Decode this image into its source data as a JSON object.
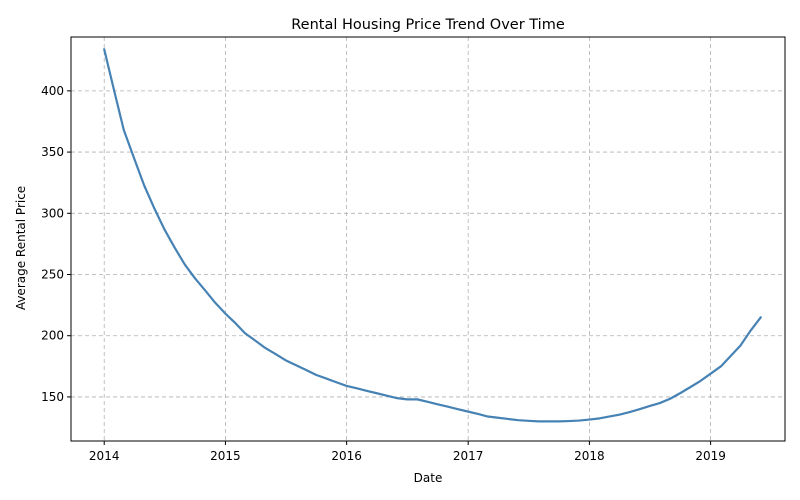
{
  "chart_data": {
    "type": "line",
    "title": "Rental Housing Price Trend Over Time",
    "xlabel": "Date",
    "ylabel": "Average Rental Price",
    "xlim": [
      "2013-09-23",
      "2019-08-13"
    ],
    "ylim": [
      114,
      444
    ],
    "grid": true,
    "x_ticks": [
      "2014",
      "2015",
      "2016",
      "2017",
      "2018",
      "2019"
    ],
    "y_ticks": [
      150,
      200,
      250,
      300,
      350,
      400
    ],
    "colors": {
      "line": "#4682b4",
      "grid": "#b0b0b0"
    },
    "series": [
      {
        "x": [
          "2014-01-01",
          "2014-02-01",
          "2014-03-01",
          "2014-04-01",
          "2014-05-01",
          "2014-06-01",
          "2014-07-01",
          "2014-08-01",
          "2014-09-01",
          "2014-10-01",
          "2014-11-01",
          "2014-12-01",
          "2015-01-01",
          "2015-02-01",
          "2015-03-01",
          "2015-04-01",
          "2015-05-01",
          "2015-06-01",
          "2015-07-01",
          "2015-08-01",
          "2015-09-01",
          "2015-10-01",
          "2015-11-01",
          "2015-12-01",
          "2016-01-01",
          "2016-02-01",
          "2016-03-01",
          "2016-04-01",
          "2016-05-01",
          "2016-06-01",
          "2016-07-01",
          "2016-08-01",
          "2016-09-01",
          "2016-10-01",
          "2016-11-01",
          "2016-12-01",
          "2017-01-01",
          "2017-02-01",
          "2017-03-01",
          "2017-04-01",
          "2017-05-01",
          "2017-06-01",
          "2017-07-01",
          "2017-08-01",
          "2017-09-01",
          "2017-10-01",
          "2017-11-01",
          "2017-12-01",
          "2018-01-01",
          "2018-02-01",
          "2018-03-01",
          "2018-04-01",
          "2018-05-01",
          "2018-06-01",
          "2018-07-01",
          "2018-08-01",
          "2018-09-01",
          "2018-10-01",
          "2018-11-01",
          "2018-12-01",
          "2019-01-01",
          "2019-02-01",
          "2019-03-01",
          "2019-04-01",
          "2019-05-01",
          "2019-06-01"
        ],
        "values": [
          434,
          399,
          368,
          345,
          323,
          304,
          287,
          272,
          258,
          247,
          237,
          227,
          218,
          210,
          202,
          196,
          190,
          185,
          180,
          176,
          172,
          168,
          165,
          162,
          159,
          157,
          155,
          153,
          151,
          149,
          148,
          148,
          146,
          144,
          142,
          140,
          138,
          136,
          134,
          133,
          132,
          131,
          130.5,
          130,
          130,
          130,
          130.3,
          130.7,
          131.5,
          132.5,
          134,
          135.5,
          137.5,
          140,
          142.5,
          145,
          148.5,
          153,
          158,
          163,
          169,
          175,
          183,
          192,
          204,
          215
        ]
      }
    ]
  }
}
